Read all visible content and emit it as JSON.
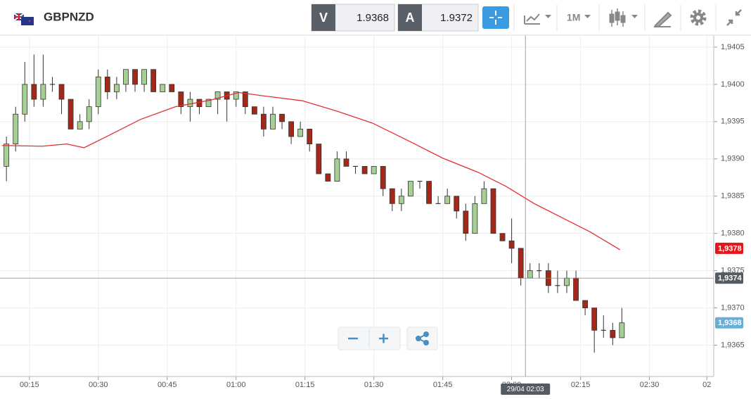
{
  "header": {
    "symbol": "GBPNZD",
    "bid_tag": "V",
    "bid": "1.9368",
    "ask_tag": "A",
    "ask": "1.9372",
    "timeframe": "1M"
  },
  "chart_data": {
    "type": "candlestick",
    "x": [
      10,
      12,
      14,
      16,
      18,
      20,
      22,
      24,
      26,
      28,
      30,
      32,
      34,
      36,
      38,
      40,
      42,
      44,
      46,
      48,
      50,
      52,
      54,
      56,
      58,
      60,
      62,
      64,
      66,
      68,
      70,
      72,
      74,
      76,
      78,
      80,
      82,
      84,
      86,
      88,
      90,
      92,
      94,
      96,
      98,
      100,
      102,
      104,
      106,
      108,
      110,
      112,
      114,
      116,
      118,
      120,
      122,
      124,
      126,
      128,
      130,
      132,
      134,
      136,
      138,
      140,
      142,
      144
    ],
    "open": [
      1.9389,
      1.9392,
      1.9396,
      1.94,
      1.9398,
      1.94,
      1.94,
      1.9398,
      1.9394,
      1.9395,
      1.9397,
      1.9401,
      1.9399,
      1.94,
      1.9402,
      1.94,
      1.9402,
      1.9399,
      1.94,
      1.9399,
      1.9397,
      1.9398,
      1.9397,
      1.9398,
      1.9399,
      1.9398,
      1.9399,
      1.9397,
      1.9396,
      1.9394,
      1.9396,
      1.9395,
      1.9393,
      1.9394,
      1.9392,
      1.9388,
      1.9387,
      1.939,
      1.9389,
      1.9389,
      1.9388,
      1.9389,
      1.9386,
      1.9384,
      1.9385,
      1.9387,
      1.9387,
      1.9384,
      1.9384,
      1.9385,
      1.9383,
      1.938,
      1.9384,
      1.9386,
      1.938,
      1.9379,
      1.9378,
      1.9374,
      1.9375,
      1.9375,
      1.9373,
      1.9373,
      1.9374,
      1.9371,
      1.937,
      1.9367,
      1.9367,
      1.9366
    ],
    "high": [
      1.9393,
      1.9397,
      1.9403,
      1.9404,
      1.9404,
      1.9401,
      1.94,
      1.9398,
      1.9396,
      1.9398,
      1.9402,
      1.9402,
      1.9401,
      1.9402,
      1.9402,
      1.9402,
      1.9402,
      1.94,
      1.94,
      1.9399,
      1.9399,
      1.9398,
      1.9398,
      1.9399,
      1.9399,
      1.9399,
      1.9399,
      1.9397,
      1.9397,
      1.9397,
      1.9396,
      1.9395,
      1.9395,
      1.9394,
      1.9392,
      1.9388,
      1.9391,
      1.9391,
      1.9389,
      1.9389,
      1.9389,
      1.9389,
      1.9386,
      1.9386,
      1.9387,
      1.9387,
      1.9387,
      1.9385,
      1.9386,
      1.9385,
      1.9384,
      1.9385,
      1.9387,
      1.9386,
      1.938,
      1.9382,
      1.9378,
      1.9376,
      1.9376,
      1.9376,
      1.9375,
      1.9375,
      1.9375,
      1.9371,
      1.937,
      1.9369,
      1.9368,
      1.937
    ],
    "low": [
      1.9387,
      1.9391,
      1.9395,
      1.9397,
      1.9397,
      1.9399,
      1.9396,
      1.9394,
      1.9394,
      1.9394,
      1.9396,
      1.9398,
      1.9398,
      1.9399,
      1.9399,
      1.9399,
      1.9399,
      1.9399,
      1.9399,
      1.9396,
      1.9395,
      1.9396,
      1.9397,
      1.9396,
      1.9395,
      1.9397,
      1.9396,
      1.9396,
      1.9393,
      1.9394,
      1.9394,
      1.9392,
      1.9393,
      1.9391,
      1.9388,
      1.9387,
      1.9387,
      1.9389,
      1.9388,
      1.9388,
      1.9388,
      1.9385,
      1.9383,
      1.9383,
      1.9385,
      1.9386,
      1.9384,
      1.9384,
      1.9384,
      1.9382,
      1.9379,
      1.938,
      1.9384,
      1.938,
      1.9379,
      1.9376,
      1.9373,
      1.9374,
      1.9374,
      1.9372,
      1.9372,
      1.9372,
      1.9371,
      1.9369,
      1.9364,
      1.9366,
      1.9365,
      1.9366
    ],
    "close": [
      1.9392,
      1.9396,
      1.94,
      1.9398,
      1.94,
      1.94,
      1.9398,
      1.9394,
      1.9395,
      1.9397,
      1.9401,
      1.9399,
      1.94,
      1.9402,
      1.94,
      1.9402,
      1.9399,
      1.94,
      1.9399,
      1.9397,
      1.9398,
      1.9397,
      1.9398,
      1.9399,
      1.9398,
      1.9399,
      1.9397,
      1.9396,
      1.9394,
      1.9396,
      1.9395,
      1.9393,
      1.9394,
      1.9392,
      1.9388,
      1.9387,
      1.939,
      1.9389,
      1.9389,
      1.9388,
      1.9389,
      1.9386,
      1.9384,
      1.9385,
      1.9387,
      1.9387,
      1.9384,
      1.9384,
      1.9385,
      1.9383,
      1.938,
      1.9384,
      1.9386,
      1.938,
      1.9379,
      1.9378,
      1.9374,
      1.9375,
      1.9375,
      1.9373,
      1.9373,
      1.9374,
      1.9371,
      1.937,
      1.9367,
      1.9367,
      1.9366,
      1.9368
    ],
    "up_color": "#a6cf94",
    "down_color": "#a3281a",
    "ma": {
      "color": "#e03131",
      "x": [
        9,
        17.8,
        23.1,
        26.9,
        31.5,
        39.2,
        46.8,
        54.5,
        60.6,
        66.7,
        74.4,
        82,
        89.7,
        97.3,
        105,
        112.7,
        118.8,
        124.9,
        131,
        137.1,
        143.6
      ],
      "values": [
        1.93918,
        1.93917,
        1.9392,
        1.93915,
        1.93929,
        1.93953,
        1.9397,
        1.93979,
        1.93989,
        1.93984,
        1.93978,
        1.93964,
        1.93948,
        1.93925,
        1.93901,
        1.93882,
        1.93863,
        1.9384,
        1.93821,
        1.93802,
        1.93778
      ]
    },
    "xlim": [
      8.6,
      164
    ],
    "ylim": [
      1.93608,
      1.94066
    ],
    "xticks": [
      {
        "value": 15,
        "label": "00:15"
      },
      {
        "value": 30,
        "label": "00:30"
      },
      {
        "value": 45,
        "label": "00:45"
      },
      {
        "value": 60,
        "label": "01:00"
      },
      {
        "value": 75,
        "label": "01:15"
      },
      {
        "value": 90,
        "label": "01:30"
      },
      {
        "value": 105,
        "label": "01:45"
      },
      {
        "value": 120,
        "label": "02:00"
      },
      {
        "value": 135,
        "label": "02:15"
      },
      {
        "value": 150,
        "label": "02:30"
      },
      {
        "value": 162.5,
        "label": "02"
      }
    ],
    "yticks": [
      {
        "value": 1.9365,
        "label": "1,9365"
      },
      {
        "value": 1.937,
        "label": "1,9370"
      },
      {
        "value": 1.9375,
        "label": "1,9375"
      },
      {
        "value": 1.938,
        "label": "1,9380"
      },
      {
        "value": 1.9385,
        "label": "1,9385"
      },
      {
        "value": 1.939,
        "label": "1,9390"
      },
      {
        "value": 1.9395,
        "label": "1,9395"
      },
      {
        "value": 1.94,
        "label": "1,9400"
      },
      {
        "value": 1.9405,
        "label": "1,9405"
      }
    ],
    "grid": true,
    "price_labels": [
      {
        "value": 1.9378,
        "label": "1,9378",
        "color": "#e8141a"
      },
      {
        "value": 1.9368,
        "label": "1,9368",
        "color": "#6aaed6"
      }
    ],
    "crosshair": {
      "x": 123,
      "x_label": "29/04 02:03",
      "y": {
        "value": 1.9374,
        "label": "1,9374"
      },
      "color": "#555b63"
    }
  }
}
